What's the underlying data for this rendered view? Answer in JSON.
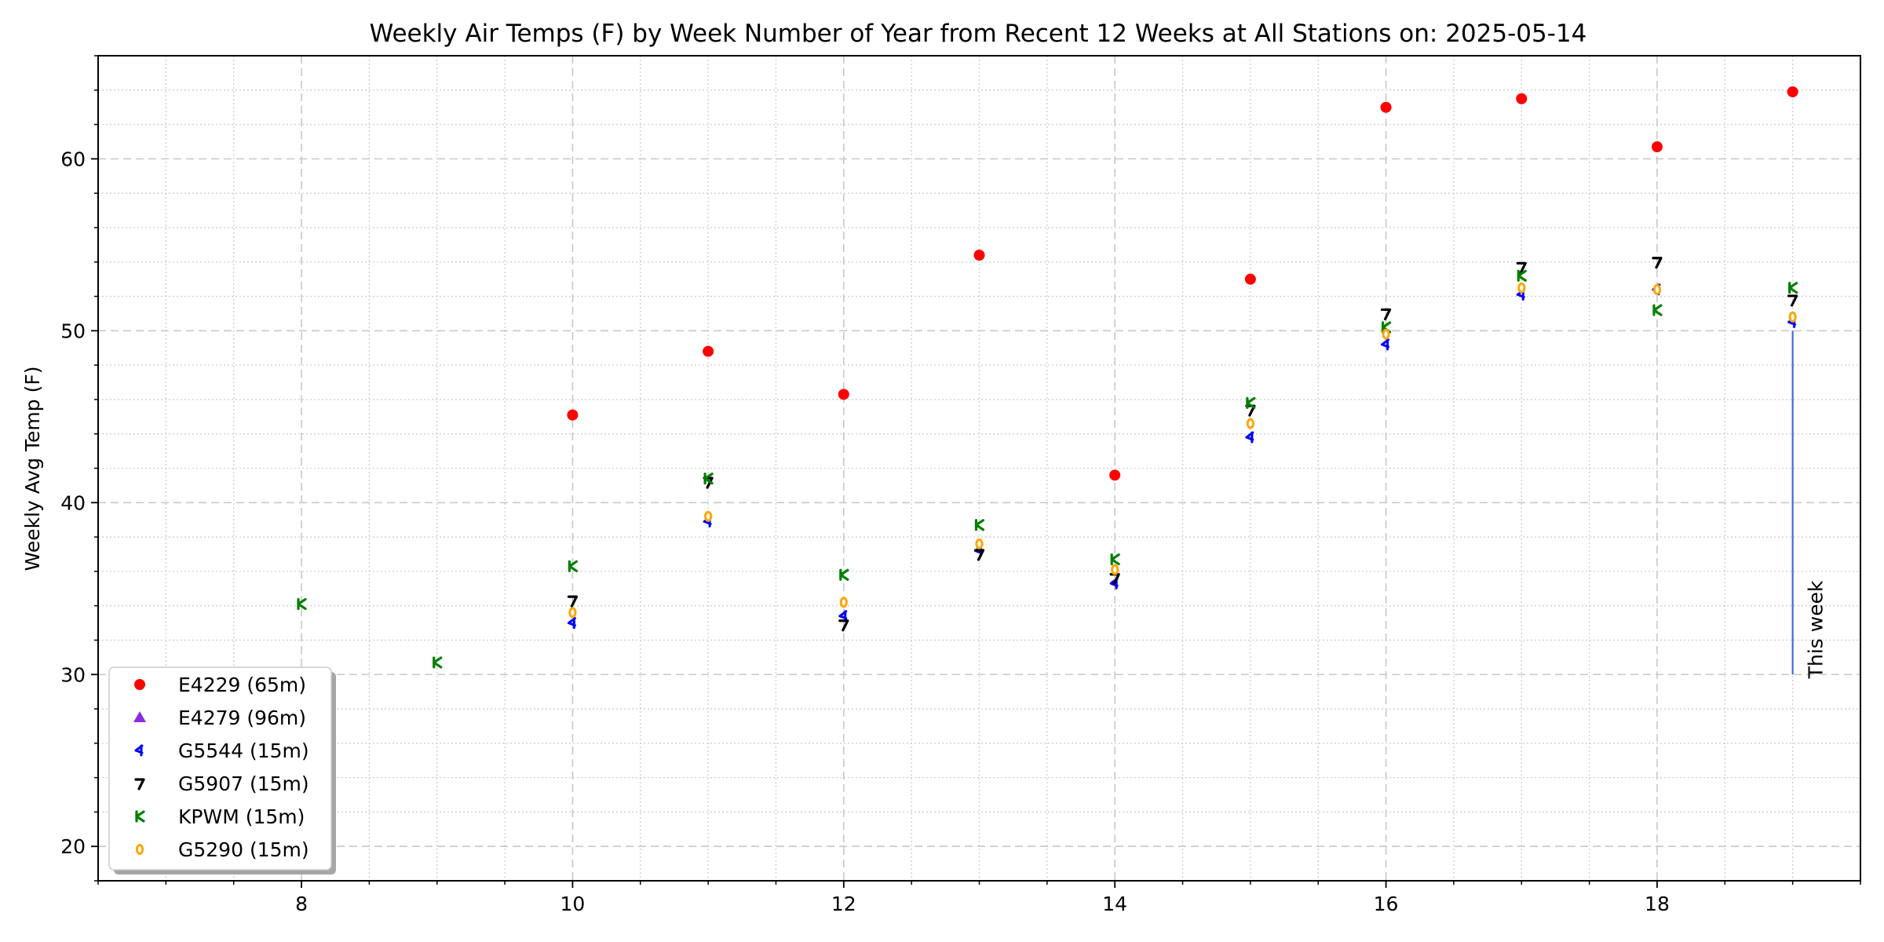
{
  "chart_data": {
    "type": "scatter",
    "title": "Weekly Air Temps (F) by Week Number of Year from Recent 12 Weeks at All Stations on: 2025-05-14",
    "xlabel": "",
    "ylabel": "Weekly Avg Temp (F)",
    "xlim": [
      6.5,
      19.5
    ],
    "ylim": [
      18,
      66
    ],
    "x_ticks": [
      8,
      10,
      12,
      14,
      16,
      18
    ],
    "y_ticks": [
      20,
      30,
      40,
      50,
      60
    ],
    "grid": true,
    "legend_position": "lower-left",
    "series": [
      {
        "name": "E4229 (65m)",
        "marker": "circle",
        "color": "#ff0000",
        "points": [
          [
            10,
            45.1
          ],
          [
            11,
            48.8
          ],
          [
            12,
            46.3
          ],
          [
            13,
            54.4
          ],
          [
            14,
            41.6
          ],
          [
            15,
            53.0
          ],
          [
            16,
            63.0
          ],
          [
            17,
            63.5
          ],
          [
            18,
            60.7
          ],
          [
            19,
            63.9
          ]
        ]
      },
      {
        "name": "E4279 (96m)",
        "marker": "triangle",
        "color": "#8a2be2",
        "points": []
      },
      {
        "name": "G5544 (15m)",
        "marker": "tri-left",
        "color": "#0000ff",
        "points": [
          [
            10,
            33.0
          ],
          [
            11,
            38.9
          ],
          [
            12,
            33.4
          ],
          [
            13,
            37.2
          ],
          [
            14,
            35.3
          ],
          [
            15,
            43.8
          ],
          [
            16,
            49.2
          ],
          [
            17,
            52.1
          ],
          [
            18,
            52.4
          ],
          [
            19,
            50.5
          ]
        ]
      },
      {
        "name": "G5907 (15m)",
        "marker": "tri-right",
        "color": "#000000",
        "points": [
          [
            10,
            34.3
          ],
          [
            11,
            41.2
          ],
          [
            12,
            32.9
          ],
          [
            13,
            37.0
          ],
          [
            14,
            35.6
          ],
          [
            15,
            45.4
          ],
          [
            16,
            51.0
          ],
          [
            17,
            53.7
          ],
          [
            18,
            54.0
          ],
          [
            19,
            51.8
          ]
        ]
      },
      {
        "name": "KPWM (15m)",
        "marker": "tri-down",
        "color": "#008000",
        "points": [
          [
            8,
            34.1
          ],
          [
            9,
            30.7
          ],
          [
            10,
            36.3
          ],
          [
            11,
            41.4
          ],
          [
            12,
            35.8
          ],
          [
            13,
            38.7
          ],
          [
            14,
            36.7
          ],
          [
            15,
            45.8
          ],
          [
            16,
            50.2
          ],
          [
            17,
            53.2
          ],
          [
            18,
            51.2
          ],
          [
            19,
            52.5
          ]
        ]
      },
      {
        "name": "G5290 (15m)",
        "marker": "octagon",
        "color": "#ffa500",
        "points": [
          [
            10,
            33.6
          ],
          [
            11,
            39.2
          ],
          [
            12,
            34.2
          ],
          [
            13,
            37.6
          ],
          [
            14,
            36.1
          ],
          [
            15,
            44.6
          ],
          [
            16,
            49.8
          ],
          [
            17,
            52.5
          ],
          [
            18,
            52.4
          ],
          [
            19,
            50.8
          ]
        ]
      }
    ],
    "annotation": {
      "text": "This week",
      "x": 19,
      "y_from": 30,
      "y_to": 50,
      "color": "#4169e1"
    }
  }
}
